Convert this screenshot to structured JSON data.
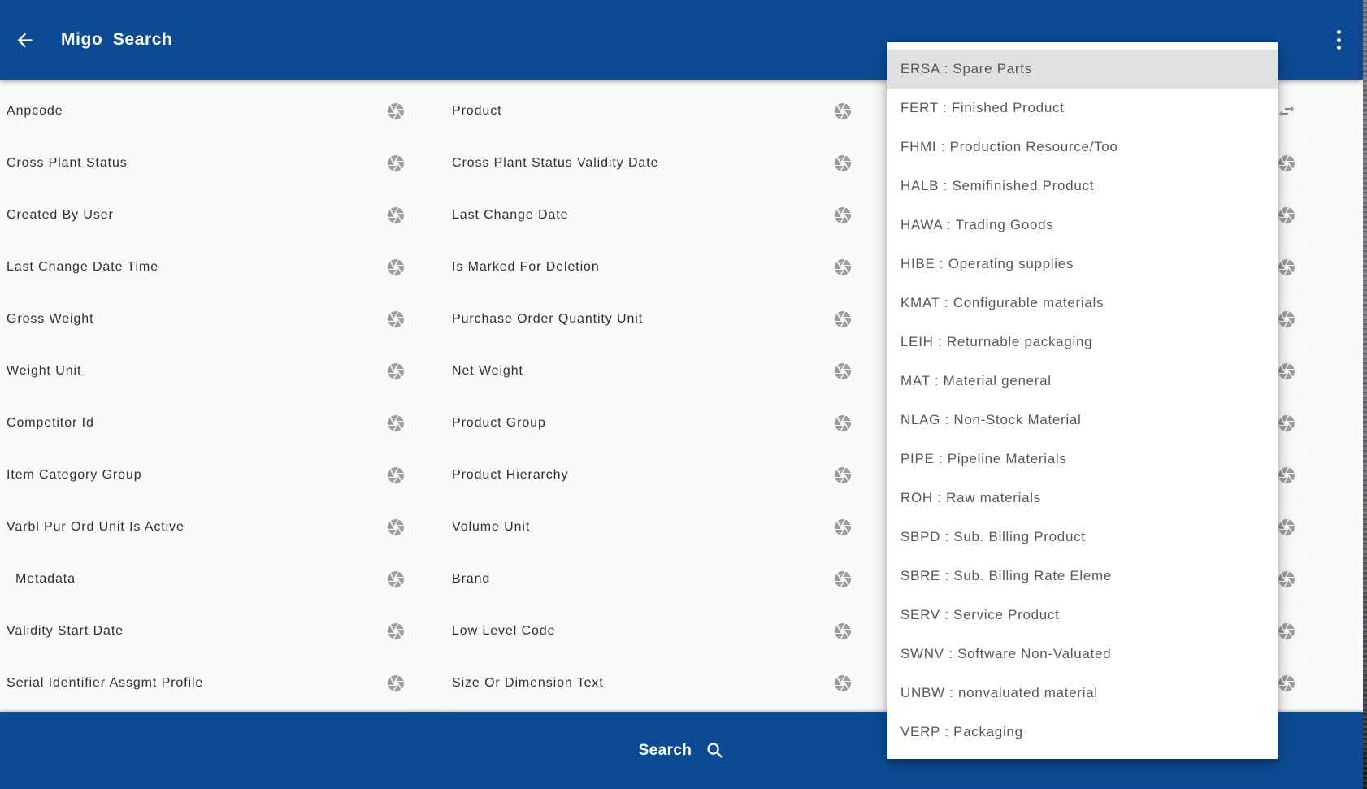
{
  "header": {
    "title": "Migo Search"
  },
  "form": {
    "columns": [
      {
        "name": "left",
        "fields": [
          {
            "label": "Anpcode"
          },
          {
            "label": "Cross Plant Status"
          },
          {
            "label": "Created By User"
          },
          {
            "label": "Last Change Date Time"
          },
          {
            "label": "Gross Weight"
          },
          {
            "label": "Weight Unit"
          },
          {
            "label": "Competitor Id"
          },
          {
            "label": "Item Category Group"
          },
          {
            "label": "Varbl Pur Ord Unit Is Active"
          },
          {
            "label": "Metadata",
            "indent": true
          },
          {
            "label": "Validity Start Date"
          },
          {
            "label": "Serial Identifier Assgmt Profile"
          }
        ]
      },
      {
        "name": "middle",
        "fields": [
          {
            "label": "Product"
          },
          {
            "label": "Cross Plant Status Validity Date"
          },
          {
            "label": "Last Change Date"
          },
          {
            "label": "Is Marked For Deletion"
          },
          {
            "label": "Purchase Order Quantity Unit"
          },
          {
            "label": "Net Weight"
          },
          {
            "label": "Product Group"
          },
          {
            "label": "Product Hierarchy"
          },
          {
            "label": "Volume Unit"
          },
          {
            "label": "Brand"
          },
          {
            "label": "Low Level Code"
          },
          {
            "label": "Size Or Dimension Text"
          }
        ]
      },
      {
        "name": "right",
        "fields": [
          {
            "label": "",
            "icon": "swap-horizontal"
          },
          {
            "label": ""
          },
          {
            "label": ""
          },
          {
            "label": ""
          },
          {
            "label": ""
          },
          {
            "label": ""
          },
          {
            "label": ""
          },
          {
            "label": ""
          },
          {
            "label": ""
          },
          {
            "label": ""
          },
          {
            "label": ""
          },
          {
            "label": ""
          }
        ]
      }
    ]
  },
  "dropdown": {
    "selected_index": 0,
    "selected": "ERSA : Spare Parts",
    "items": [
      "ERSA : Spare Parts",
      "FERT : Finished Product",
      "FHMI : Production Resource/Too",
      "HALB : Semifinished Product",
      "HAWA : Trading Goods",
      "HIBE : Operating supplies",
      "KMAT : Configurable materials",
      "LEIH : Returnable packaging",
      "MAT : Material general",
      "NLAG : Non-Stock Material",
      "PIPE : Pipeline Materials",
      "ROH : Raw materials",
      "SBPD : Sub. Billing Product",
      "SBRE : Sub. Billing Rate Eleme",
      "SERV : Service Product",
      "SWNV : Software Non-Valuated",
      "UNBW : nonvaluated material",
      "VERP : Packaging"
    ]
  },
  "footer": {
    "search_label": "Search"
  },
  "icons": {
    "back": "arrow-left-icon",
    "menu": "kebab-vertical-icon",
    "field": "camera-shutter-icon",
    "swap": "swap-horizontal-icon",
    "search": "magnifier-icon"
  },
  "colors": {
    "header_blue": "#0c4b93",
    "content_bg": "#fafafa",
    "divider": "#e4e4e4",
    "icon_gray": "#9e9e9e",
    "selected_item_bg": "#e0e0e0",
    "label_text": "#303030",
    "dropdown_text": "#575757"
  }
}
